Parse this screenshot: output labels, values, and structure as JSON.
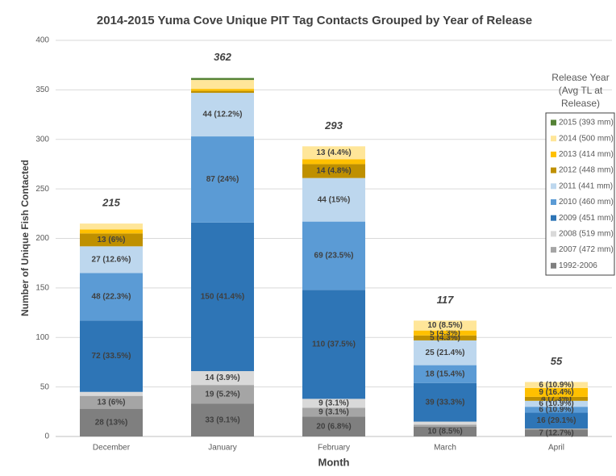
{
  "chart_data": {
    "type": "stacked_bar",
    "title": "2014-2015 Yuma Cove Unique PIT Tag Contacts Grouped by Year of Release",
    "x_label": "Month",
    "y_label": "Number of Unique Fish Contacted",
    "categories": [
      "December",
      "January",
      "February",
      "March",
      "April"
    ],
    "ylim": [
      0,
      400
    ],
    "yticks": [
      0,
      50,
      100,
      150,
      200,
      250,
      300,
      350,
      400
    ],
    "grid": true,
    "legend_title": [
      "Release Year",
      "(Avg TL at",
      "Release)"
    ],
    "legend_position": "right",
    "totals": [
      215,
      362,
      293,
      117,
      55
    ],
    "series": [
      {
        "name": "1992-2006",
        "color": "#7f7f7f",
        "values": [
          28,
          33,
          20,
          10,
          7
        ],
        "value_labels": [
          "28 (13%)",
          "33 (9.1%)",
          "20 (6.8%)",
          "10 (8.5%)",
          "7 (12.7%)"
        ]
      },
      {
        "name": "2007 (472 mm)",
        "color": "#a5a5a5",
        "values": [
          13,
          19,
          9,
          2,
          1
        ],
        "value_labels": [
          "13 (6%)",
          "19 (5.2%)",
          "9 (3.1%)",
          null,
          null
        ]
      },
      {
        "name": "2008 (519 mm)",
        "color": "#d9d9d9",
        "values": [
          4,
          14,
          9,
          3,
          0
        ],
        "value_labels": [
          null,
          "14 (3.9%)",
          "9 (3.1%)",
          null,
          null
        ]
      },
      {
        "name": "2009 (451 mm)",
        "color": "#2e75b6",
        "values": [
          72,
          150,
          110,
          39,
          16
        ],
        "value_labels": [
          "72 (33.5%)",
          "150 (41.4%)",
          "110 (37.5%)",
          "39 (33.3%)",
          "16 (29.1%)"
        ]
      },
      {
        "name": "2010 (460 mm)",
        "color": "#5b9bd5",
        "values": [
          48,
          87,
          69,
          18,
          6
        ],
        "value_labels": [
          "48 (22.3%)",
          "87 (24%)",
          "69 (23.5%)",
          "18 (15.4%)",
          "6 (10.9%)"
        ]
      },
      {
        "name": "2011 (441 mm)",
        "color": "#bdd7ee",
        "values": [
          27,
          44,
          44,
          25,
          6
        ],
        "value_labels": [
          "27 (12.6%)",
          "44 (12.2%)",
          "44 (15%)",
          "25 (21.4%)",
          "6 (10.9%)"
        ]
      },
      {
        "name": "2012 (448 mm)",
        "color": "#bf9000",
        "values": [
          13,
          2,
          14,
          5,
          4
        ],
        "value_labels": [
          "13 (6%)",
          null,
          "14 (4.8%)",
          "5 (4.3%)",
          "4 (7.3%)"
        ]
      },
      {
        "name": "2013 (414 mm)",
        "color": "#ffc000",
        "values": [
          4,
          2,
          5,
          5,
          9
        ],
        "value_labels": [
          null,
          null,
          null,
          "5 (4.3%)",
          "9 (16.4%)"
        ]
      },
      {
        "name": "2014 (500 mm)",
        "color": "#ffe699",
        "values": [
          6,
          9,
          13,
          10,
          6
        ],
        "value_labels": [
          null,
          null,
          "13 (4.4%)",
          "10 (8.5%)",
          "6 (10.9%)"
        ]
      },
      {
        "name": "2015 (393 mm)",
        "color": "#548235",
        "values": [
          0,
          2,
          0,
          0,
          0
        ],
        "value_labels": [
          null,
          null,
          null,
          null,
          null
        ]
      }
    ]
  }
}
